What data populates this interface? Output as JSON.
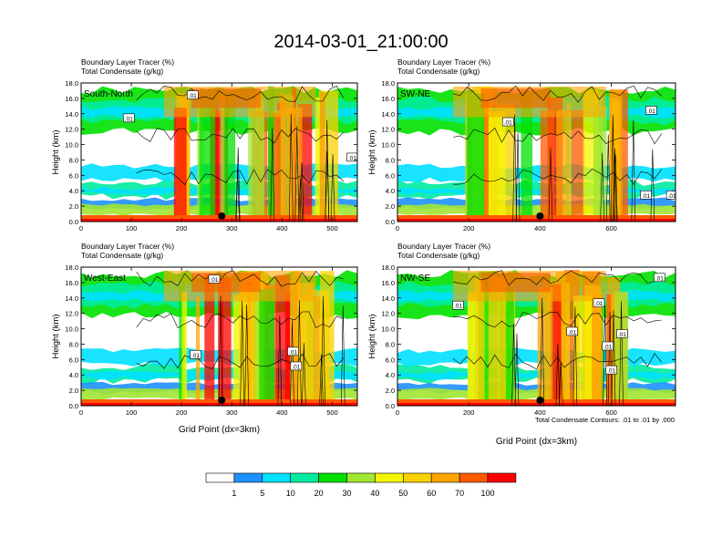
{
  "title": "2014-03-01_21:00:00",
  "chart_data": [
    {
      "type": "heatmap",
      "panel_label": "South-North",
      "subtitle_1": "Boundary Layer Tracer   (%)",
      "subtitle_2": "Total Condensate   (g/kg)",
      "ylabel": "Height (km)",
      "xlabel": "",
      "xlim": [
        0,
        550
      ],
      "ylim": [
        0,
        18
      ],
      "xticks": [
        "0",
        "100",
        "200",
        "300",
        "400",
        "500"
      ],
      "yticks": [
        "0.0",
        "2.0",
        "4.0",
        "6.0",
        "8.0",
        "10.0",
        "12.0",
        "14.0",
        "16.0",
        "18.0"
      ],
      "marker_x": 280,
      "contour_labels": [
        {
          "text": ".01",
          "x": 222,
          "y": 16.4
        },
        {
          "text": ".01",
          "x": 95,
          "y": 13.4
        },
        {
          "text": ".01",
          "x": 540,
          "y": 8.3
        }
      ]
    },
    {
      "type": "heatmap",
      "panel_label": "SW-NE",
      "subtitle_1": "Boundary Layer Tracer   (%)",
      "subtitle_2": "Total Condensate   (g/kg)",
      "ylabel": "Height (km)",
      "xlabel": "",
      "xlim": [
        0,
        780
      ],
      "ylim": [
        0,
        18
      ],
      "xticks": [
        "0",
        "200",
        "400",
        "600"
      ],
      "yticks": [
        "0.0",
        "2.0",
        "4.0",
        "6.0",
        "8.0",
        "10.0",
        "12.0",
        "14.0",
        "16.0",
        "18.0"
      ],
      "marker_x": 400,
      "contour_labels": [
        {
          "text": ".01",
          "x": 310,
          "y": 12.9
        },
        {
          "text": ".01",
          "x": 712,
          "y": 14.4
        },
        {
          "text": ".01",
          "x": 697,
          "y": 3.4
        },
        {
          "text": ".01",
          "x": 770,
          "y": 3.4
        }
      ]
    },
    {
      "type": "heatmap",
      "panel_label": "West-East",
      "subtitle_1": "Boundary Layer Tracer   (%)",
      "subtitle_2": "Total Condensate   (g/kg)",
      "ylabel": "Height (km)",
      "xlabel": "Grid Point (dx=3km)",
      "xlim": [
        0,
        550
      ],
      "ylim": [
        0,
        18
      ],
      "xticks": [
        "0",
        "100",
        "200",
        "300",
        "400",
        "500"
      ],
      "yticks": [
        "0.0",
        "2.0",
        "4.0",
        "6.0",
        "8.0",
        "10.0",
        "12.0",
        "14.0",
        "16.0",
        "18.0"
      ],
      "marker_x": 280,
      "contour_labels": [
        {
          "text": ".01",
          "x": 265,
          "y": 16.4
        },
        {
          "text": ".01",
          "x": 228,
          "y": 6.6
        },
        {
          "text": ".01",
          "x": 422,
          "y": 7.0
        },
        {
          "text": ".01",
          "x": 428,
          "y": 5.1
        }
      ]
    },
    {
      "type": "heatmap",
      "panel_label": "NW-SE",
      "subtitle_1": "Boundary Layer Tracer   (%)",
      "subtitle_2": "Total Condensate   (g/kg)",
      "ylabel": "Height (km)",
      "xlabel": "Grid Point (dx=3km)",
      "xlim": [
        0,
        780
      ],
      "ylim": [
        0,
        18
      ],
      "xticks": [
        "0",
        "200",
        "400",
        "600"
      ],
      "yticks": [
        "0.0",
        "2.0",
        "4.0",
        "6.0",
        "8.0",
        "10.0",
        "12.0",
        "14.0",
        "16.0",
        "18.0"
      ],
      "marker_x": 400,
      "contour_labels": [
        {
          "text": ".01",
          "x": 735,
          "y": 16.6
        },
        {
          "text": ".01",
          "x": 170,
          "y": 13.0
        },
        {
          "text": ".01",
          "x": 565,
          "y": 13.3
        },
        {
          "text": ".01",
          "x": 490,
          "y": 9.6
        },
        {
          "text": ".01",
          "x": 590,
          "y": 7.7
        },
        {
          "text": ".01",
          "x": 630,
          "y": 9.3
        },
        {
          "text": ".01",
          "x": 600,
          "y": 4.6
        }
      ]
    }
  ],
  "contour_note": "Total Condensate Contours: .01 to .01 by .000",
  "colorbar": {
    "labels": [
      "1",
      "5",
      "10",
      "20",
      "30",
      "40",
      "50",
      "60",
      "70",
      "100"
    ],
    "colors": [
      "#ffffff",
      "#1e90ff",
      "#00e0ff",
      "#00eb9e",
      "#00e000",
      "#a0e632",
      "#f5f500",
      "#fbd200",
      "#ffa500",
      "#ff5a00",
      "#ff0000"
    ]
  }
}
